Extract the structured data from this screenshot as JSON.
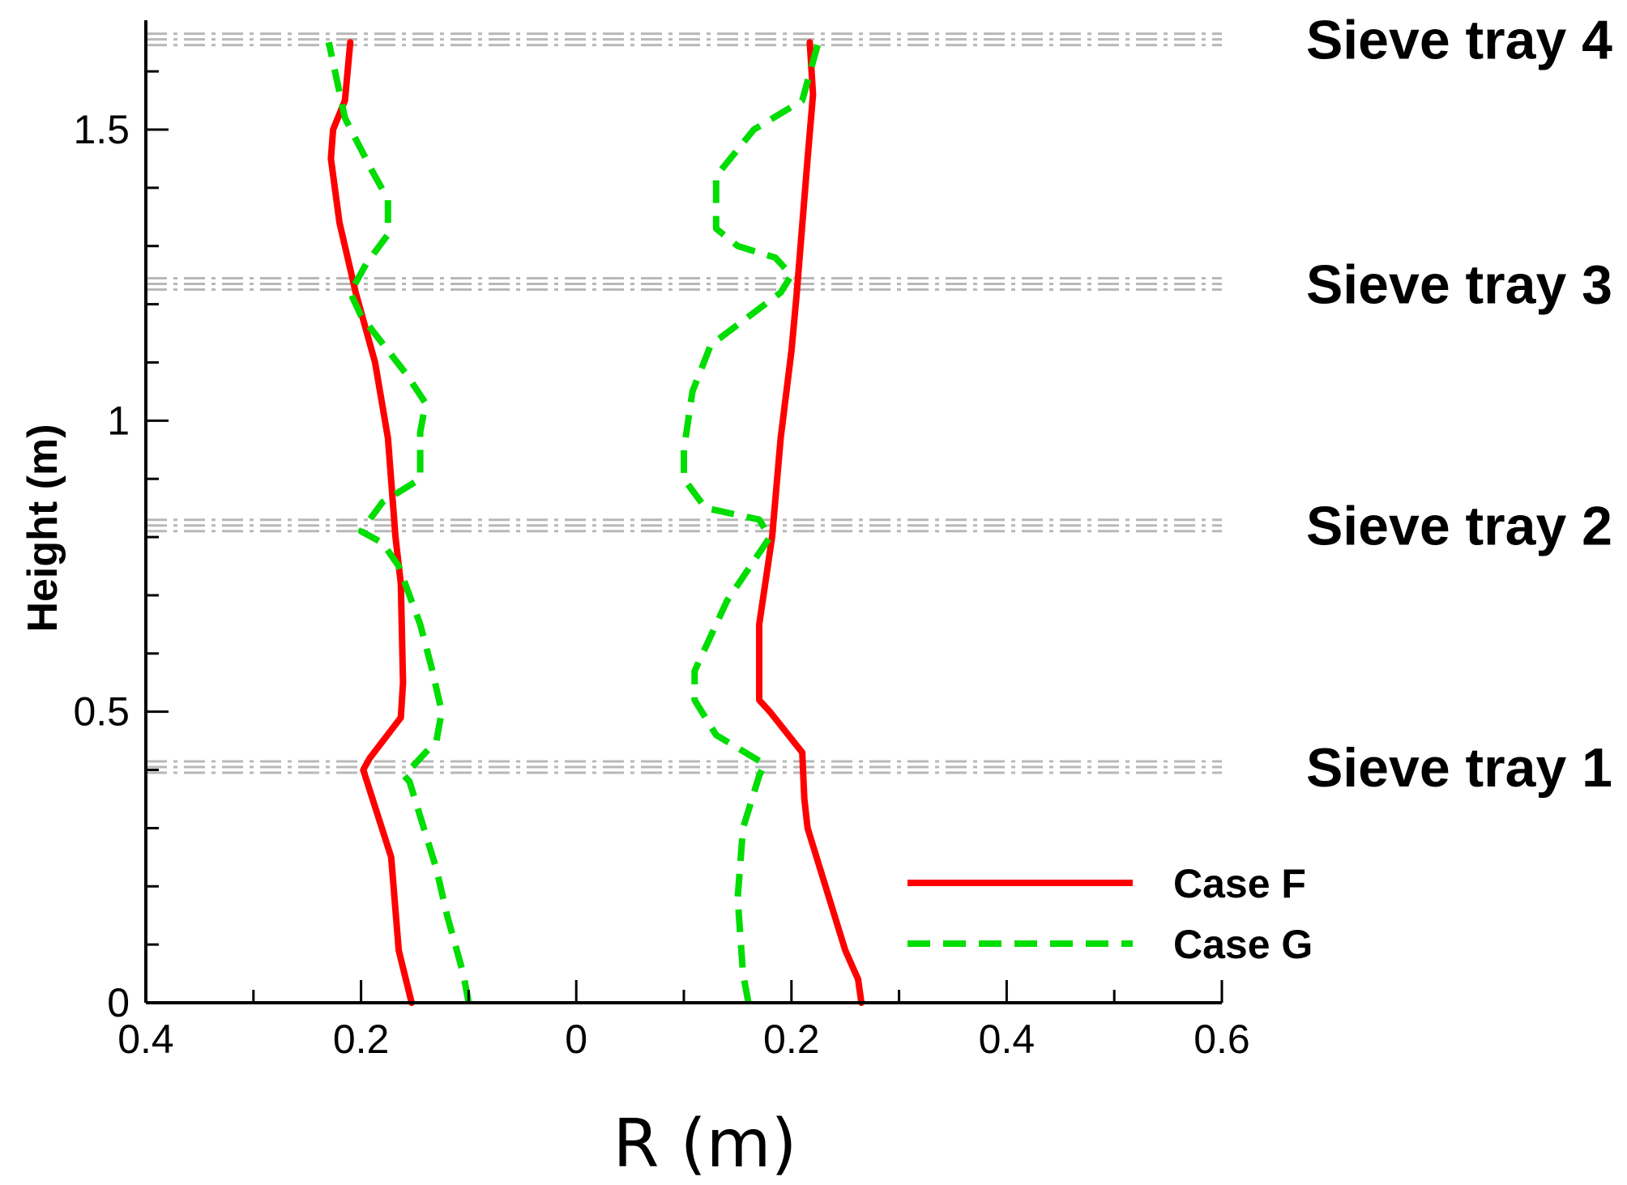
{
  "chart_data": {
    "type": "line",
    "title": "",
    "xlabel": "R (m)",
    "ylabel": "Height (m)",
    "xlim": [
      -0.4,
      0.6
    ],
    "ylim": [
      0,
      1.7
    ],
    "x_ticks": [
      -0.4,
      -0.2,
      0,
      0.2,
      0.4,
      0.6
    ],
    "x_tick_labels": [
      "0.4",
      "0.2",
      "0",
      "0.2",
      "0.4",
      "0.6"
    ],
    "y_ticks": [
      0,
      0.5,
      1,
      1.5
    ],
    "y_tick_labels": [
      "0",
      "0.5",
      "1",
      "1.5"
    ],
    "legend_position": "bottom-right",
    "legend": [
      "Case F",
      "Case G"
    ],
    "sieve_trays": [
      {
        "label": "Sieve tray 1",
        "height": 0.405
      },
      {
        "label": "Sieve tray 2",
        "height": 0.82
      },
      {
        "label": "Sieve tray 3",
        "height": 1.235
      },
      {
        "label": "Sieve tray 4",
        "height": 1.655
      }
    ],
    "series": [
      {
        "name": "Case F",
        "color": "#ff0000",
        "style": "solid",
        "branches": [
          [
            [
              -0.153,
              0
            ],
            [
              -0.165,
              0.09
            ],
            [
              -0.172,
              0.25
            ],
            [
              -0.198,
              0.4
            ],
            [
              -0.192,
              0.42
            ],
            [
              -0.163,
              0.49
            ],
            [
              -0.161,
              0.55
            ],
            [
              -0.163,
              0.72
            ],
            [
              -0.168,
              0.8
            ],
            [
              -0.175,
              0.97
            ],
            [
              -0.187,
              1.1
            ],
            [
              -0.205,
              1.22
            ],
            [
              -0.22,
              1.34
            ],
            [
              -0.228,
              1.45
            ],
            [
              -0.226,
              1.5
            ],
            [
              -0.215,
              1.55
            ],
            [
              -0.21,
              1.65
            ]
          ],
          [
            [
              0.265,
              0
            ],
            [
              0.262,
              0.04
            ],
            [
              0.25,
              0.09
            ],
            [
              0.24,
              0.15
            ],
            [
              0.215,
              0.3
            ],
            [
              0.212,
              0.35
            ],
            [
              0.21,
              0.43
            ],
            [
              0.18,
              0.5
            ],
            [
              0.17,
              0.52
            ],
            [
              0.17,
              0.65
            ],
            [
              0.182,
              0.8
            ],
            [
              0.19,
              0.97
            ],
            [
              0.2,
              1.12
            ],
            [
              0.205,
              1.22
            ],
            [
              0.215,
              1.45
            ],
            [
              0.22,
              1.56
            ],
            [
              0.217,
              1.65
            ]
          ]
        ]
      },
      {
        "name": "Case G",
        "color": "#00dd00",
        "style": "dashed",
        "branches": [
          [
            [
              -0.1,
              0
            ],
            [
              -0.105,
              0.05
            ],
            [
              -0.12,
              0.15
            ],
            [
              -0.13,
              0.23
            ],
            [
              -0.14,
              0.29
            ],
            [
              -0.155,
              0.38
            ],
            [
              -0.16,
              0.39
            ],
            [
              -0.13,
              0.45
            ],
            [
              -0.125,
              0.5
            ],
            [
              -0.135,
              0.58
            ],
            [
              -0.145,
              0.65
            ],
            [
              -0.165,
              0.75
            ],
            [
              -0.18,
              0.79
            ],
            [
              -0.2,
              0.81
            ],
            [
              -0.18,
              0.86
            ],
            [
              -0.145,
              0.9
            ],
            [
              -0.145,
              0.98
            ],
            [
              -0.14,
              1.03
            ],
            [
              -0.158,
              1.08
            ],
            [
              -0.2,
              1.18
            ],
            [
              -0.21,
              1.22
            ],
            [
              -0.195,
              1.27
            ],
            [
              -0.175,
              1.32
            ],
            [
              -0.175,
              1.38
            ],
            [
              -0.19,
              1.43
            ],
            [
              -0.215,
              1.52
            ],
            [
              -0.23,
              1.65
            ]
          ],
          [
            [
              0.16,
              0
            ],
            [
              0.155,
              0.05
            ],
            [
              0.15,
              0.18
            ],
            [
              0.155,
              0.3
            ],
            [
              0.17,
              0.39
            ],
            [
              0.175,
              0.41
            ],
            [
              0.13,
              0.46
            ],
            [
              0.11,
              0.52
            ],
            [
              0.11,
              0.57
            ],
            [
              0.14,
              0.69
            ],
            [
              0.18,
              0.8
            ],
            [
              0.17,
              0.83
            ],
            [
              0.12,
              0.85
            ],
            [
              0.1,
              0.9
            ],
            [
              0.1,
              0.95
            ],
            [
              0.108,
              1.05
            ],
            [
              0.125,
              1.13
            ],
            [
              0.19,
              1.22
            ],
            [
              0.2,
              1.25
            ],
            [
              0.185,
              1.28
            ],
            [
              0.15,
              1.3
            ],
            [
              0.13,
              1.33
            ],
            [
              0.13,
              1.42
            ],
            [
              0.165,
              1.5
            ],
            [
              0.21,
              1.55
            ],
            [
              0.225,
              1.65
            ]
          ]
        ]
      }
    ]
  }
}
